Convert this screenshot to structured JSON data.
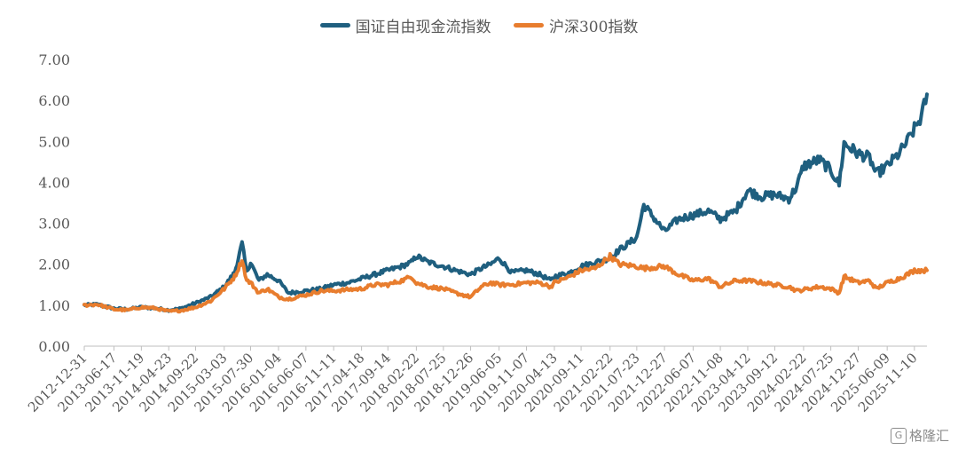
{
  "chart_data": {
    "type": "line",
    "title": "",
    "xlabel": "",
    "ylabel": "",
    "ylim": [
      0,
      7
    ],
    "yticks": [
      "0.00",
      "1.00",
      "2.00",
      "3.00",
      "4.00",
      "5.00",
      "6.00",
      "7.00"
    ],
    "grid": false,
    "legend_position": "top-center",
    "x_tick_labels": [
      "2012-12-31",
      "2013-06-17",
      "2013-11-19",
      "2014-04-23",
      "2014-09-22",
      "2015-03-03",
      "2015-07-30",
      "2016-01-04",
      "2016-06-07",
      "2016-11-11",
      "2017-04-18",
      "2017-09-14",
      "2018-02-22",
      "2018-07-25",
      "2018-12-26",
      "2019-06-05",
      "2019-11-07",
      "2020-04-13",
      "2020-09-11",
      "2021-02-22",
      "2021-07-23",
      "2021-12-27",
      "2022-06-07",
      "2022-11-08",
      "2023-04-12",
      "2023-09-12",
      "2024-02-22",
      "2024-07-25",
      "2024-12-27",
      "2025-06-09",
      "2025-11-10"
    ],
    "x": [
      "2012-12-31",
      "2013-03-15",
      "2013-06-17",
      "2013-09-01",
      "2013-11-19",
      "2014-02-01",
      "2014-04-23",
      "2014-07-01",
      "2014-09-22",
      "2014-12-15",
      "2015-03-03",
      "2015-05-01",
      "2015-06-12",
      "2015-07-08",
      "2015-07-30",
      "2015-09-15",
      "2015-11-01",
      "2016-01-04",
      "2016-02-29",
      "2016-06-07",
      "2016-09-01",
      "2016-11-11",
      "2017-02-01",
      "2017-04-18",
      "2017-07-01",
      "2017-09-14",
      "2017-12-01",
      "2018-01-26",
      "2018-02-22",
      "2018-05-01",
      "2018-07-25",
      "2018-10-01",
      "2018-12-26",
      "2019-02-25",
      "2019-04-19",
      "2019-06-05",
      "2019-08-15",
      "2019-11-07",
      "2020-01-20",
      "2020-03-23",
      "2020-04-13",
      "2020-07-10",
      "2020-09-11",
      "2020-12-01",
      "2021-02-22",
      "2021-04-15",
      "2021-07-23",
      "2021-09-01",
      "2021-12-27",
      "2022-03-15",
      "2022-06-07",
      "2022-09-01",
      "2022-11-08",
      "2023-02-01",
      "2023-04-12",
      "2023-07-01",
      "2023-09-12",
      "2023-12-01",
      "2024-01-15",
      "2024-02-22",
      "2024-05-20",
      "2024-07-25",
      "2024-09-10",
      "2024-10-08",
      "2024-12-27",
      "2025-03-01",
      "2025-04-08",
      "2025-06-09",
      "2025-08-15",
      "2025-10-01",
      "2025-11-10",
      "2025-12-20",
      "2026-01-20"
    ],
    "series": [
      {
        "name": "国证自由现金流指数",
        "color": "#1f5f7f",
        "values": [
          1.0,
          1.02,
          0.92,
          0.9,
          0.95,
          0.93,
          0.88,
          0.92,
          1.05,
          1.2,
          1.45,
          1.8,
          2.5,
          1.8,
          2.05,
          1.6,
          1.75,
          1.6,
          1.3,
          1.35,
          1.4,
          1.5,
          1.55,
          1.65,
          1.75,
          1.85,
          1.95,
          2.05,
          2.2,
          2.05,
          1.95,
          1.85,
          1.75,
          1.9,
          2.0,
          2.15,
          1.8,
          1.85,
          1.75,
          1.6,
          1.7,
          1.8,
          1.95,
          2.05,
          2.15,
          2.35,
          2.65,
          3.45,
          2.8,
          3.1,
          3.2,
          3.3,
          3.1,
          3.3,
          3.8,
          3.65,
          3.7,
          3.6,
          3.9,
          4.4,
          4.55,
          4.3,
          3.95,
          4.95,
          4.7,
          4.6,
          4.2,
          4.4,
          4.7,
          5.0,
          5.3,
          5.6,
          6.15
        ]
      },
      {
        "name": "沪深300指数",
        "color": "#e87d2e",
        "values": [
          1.0,
          1.02,
          0.9,
          0.88,
          0.95,
          0.93,
          0.85,
          0.87,
          0.95,
          1.1,
          1.4,
          1.7,
          2.1,
          1.6,
          1.55,
          1.3,
          1.4,
          1.2,
          1.15,
          1.25,
          1.35,
          1.35,
          1.38,
          1.4,
          1.5,
          1.5,
          1.6,
          1.7,
          1.55,
          1.45,
          1.4,
          1.3,
          1.2,
          1.45,
          1.55,
          1.5,
          1.5,
          1.55,
          1.55,
          1.45,
          1.55,
          1.7,
          1.85,
          1.9,
          2.2,
          2.0,
          1.95,
          1.9,
          1.95,
          1.75,
          1.6,
          1.65,
          1.45,
          1.6,
          1.6,
          1.55,
          1.5,
          1.45,
          1.35,
          1.38,
          1.45,
          1.4,
          1.3,
          1.7,
          1.55,
          1.6,
          1.4,
          1.55,
          1.65,
          1.75,
          1.85,
          1.85,
          1.85
        ]
      }
    ]
  },
  "watermark": {
    "logo": "G",
    "text": "格隆汇"
  }
}
